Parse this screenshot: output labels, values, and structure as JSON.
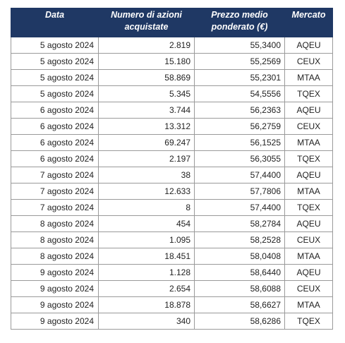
{
  "table": {
    "headers": {
      "date": "Data",
      "shares": "Numero di azioni acquistate",
      "price": "Prezzo medio ponderato (€)",
      "market": "Mercato"
    },
    "rows": [
      {
        "date": "5 agosto 2024",
        "shares": "2.819",
        "price": "55,3400",
        "market": "AQEU"
      },
      {
        "date": "5 agosto 2024",
        "shares": "15.180",
        "price": "55,2569",
        "market": "CEUX"
      },
      {
        "date": "5 agosto 2024",
        "shares": "58.869",
        "price": "55,2301",
        "market": "MTAA"
      },
      {
        "date": "5 agosto 2024",
        "shares": "5.345",
        "price": "54,5556",
        "market": "TQEX"
      },
      {
        "date": "6 agosto 2024",
        "shares": "3.744",
        "price": "56,2363",
        "market": "AQEU"
      },
      {
        "date": "6 agosto 2024",
        "shares": "13.312",
        "price": "56,2759",
        "market": "CEUX"
      },
      {
        "date": "6 agosto 2024",
        "shares": "69.247",
        "price": "56,1525",
        "market": "MTAA"
      },
      {
        "date": "6 agosto 2024",
        "shares": "2.197",
        "price": "56,3055",
        "market": "TQEX"
      },
      {
        "date": "7 agosto 2024",
        "shares": "38",
        "price": "57,4400",
        "market": "AQEU"
      },
      {
        "date": "7 agosto 2024",
        "shares": "12.633",
        "price": "57,7806",
        "market": "MTAA"
      },
      {
        "date": "7 agosto 2024",
        "shares": "8",
        "price": "57,4400",
        "market": "TQEX"
      },
      {
        "date": "8 agosto 2024",
        "shares": "454",
        "price": "58,2784",
        "market": "AQEU"
      },
      {
        "date": "8 agosto 2024",
        "shares": "1.095",
        "price": "58,2528",
        "market": "CEUX"
      },
      {
        "date": "8 agosto 2024",
        "shares": "18.451",
        "price": "58,0408",
        "market": "MTAA"
      },
      {
        "date": "9 agosto 2024",
        "shares": "1.128",
        "price": "58,6440",
        "market": "AQEU"
      },
      {
        "date": "9 agosto 2024",
        "shares": "2.654",
        "price": "58,6088",
        "market": "CEUX"
      },
      {
        "date": "9 agosto 2024",
        "shares": "18.878",
        "price": "58,6627",
        "market": "MTAA"
      },
      {
        "date": "9 agosto 2024",
        "shares": "340",
        "price": "58,6286",
        "market": "TQEX"
      }
    ]
  },
  "colors": {
    "header_bg": "#1f3864",
    "header_text": "#ffffff",
    "border": "#9a9a9a"
  }
}
